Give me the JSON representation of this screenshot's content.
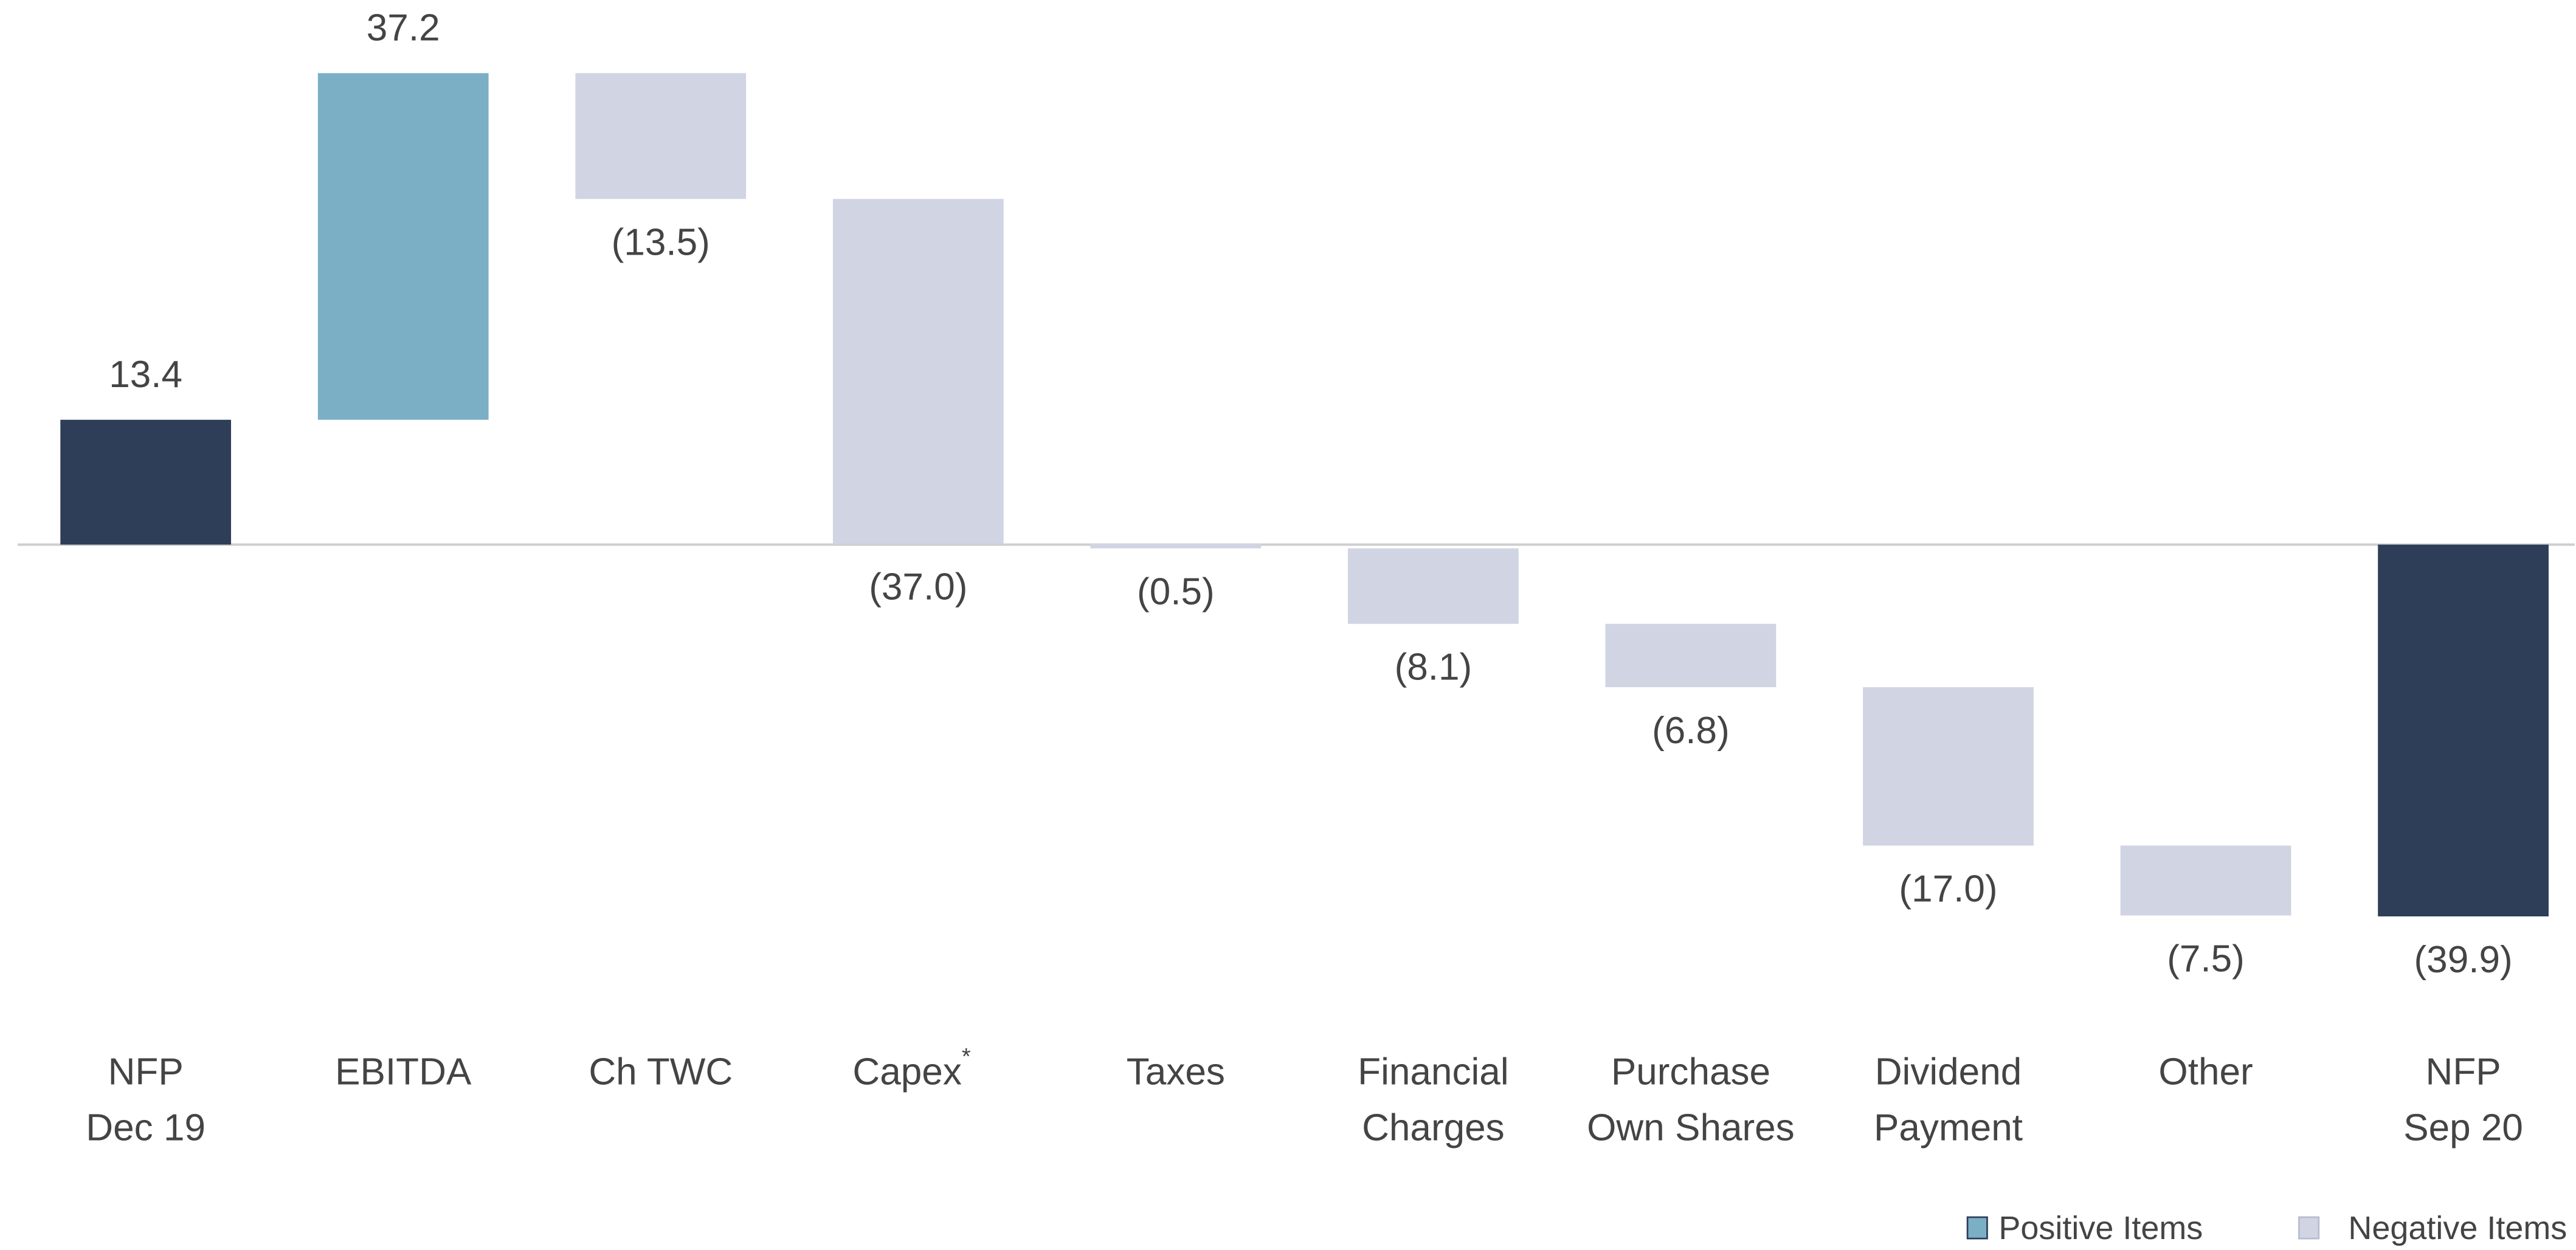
{
  "chart_data": {
    "type": "waterfall",
    "categories": [
      [
        "NFP",
        "Dec 19"
      ],
      [
        "EBITDA"
      ],
      [
        "Ch TWC"
      ],
      [
        "Capex"
      ],
      [
        "Taxes"
      ],
      [
        "Financial",
        "Charges"
      ],
      [
        "Purchase",
        "Own Shares"
      ],
      [
        "Dividend",
        "Payment"
      ],
      [
        "Other"
      ],
      [
        "NFP",
        "Sep 20"
      ]
    ],
    "superscripts": [
      null,
      null,
      null,
      "*",
      null,
      null,
      null,
      null,
      null,
      null
    ],
    "values": [
      13.4,
      37.2,
      -13.5,
      -37.0,
      -0.5,
      -8.1,
      -6.8,
      -17.0,
      -7.5,
      -39.9
    ],
    "value_labels": [
      "13.4",
      "37.2",
      "(13.5)",
      "(37.0)",
      "(0.5)",
      "(8.1)",
      "(6.8)",
      "(17.0)",
      "(7.5)",
      "(39.9)"
    ],
    "total_color": "#2e3e58",
    "positive_color": "#7bafc6",
    "negative_color": "#d0d4e3",
    "legend": [
      {
        "name": "Positive Items",
        "color": "#7bafc6"
      },
      {
        "name": "Negative Items",
        "color": "#d0d4e3"
      }
    ]
  }
}
